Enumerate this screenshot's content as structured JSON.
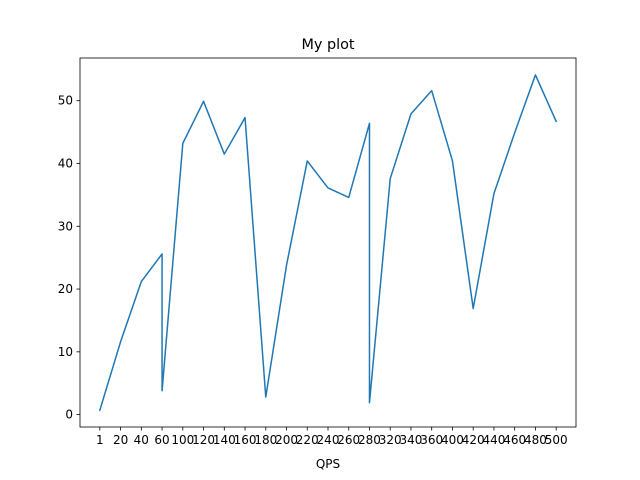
{
  "chart_data": {
    "type": "line",
    "title": "My plot",
    "xlabel": "QPS",
    "ylabel": "",
    "grid": false,
    "legend": "none",
    "color": "#1f77b4",
    "categories": [
      "1",
      "20",
      "40",
      "60",
      "100",
      "120",
      "140",
      "160",
      "180",
      "200",
      "220",
      "240",
      "260",
      "280",
      "320",
      "340",
      "360",
      "400",
      "420",
      "440",
      "460",
      "480",
      "500"
    ],
    "points": [
      {
        "x": "1",
        "y": 0.7
      },
      {
        "x": "20",
        "y": 11.6
      },
      {
        "x": "40",
        "y": 21.2
      },
      {
        "x": "60",
        "y": 25.6
      },
      {
        "x": "60",
        "y": 3.8
      },
      {
        "x": "100",
        "y": 43.2
      },
      {
        "x": "120",
        "y": 49.9
      },
      {
        "x": "140",
        "y": 41.5
      },
      {
        "x": "160",
        "y": 47.3
      },
      {
        "x": "180",
        "y": 2.8
      },
      {
        "x": "200",
        "y": 23.8
      },
      {
        "x": "220",
        "y": 40.4
      },
      {
        "x": "240",
        "y": 36.1
      },
      {
        "x": "260",
        "y": 34.6
      },
      {
        "x": "280",
        "y": 46.4
      },
      {
        "x": "280",
        "y": 1.9
      },
      {
        "x": "320",
        "y": 37.6
      },
      {
        "x": "340",
        "y": 47.9
      },
      {
        "x": "360",
        "y": 51.6
      },
      {
        "x": "400",
        "y": 40.4
      },
      {
        "x": "420",
        "y": 16.9
      },
      {
        "x": "440",
        "y": 35.2
      },
      {
        "x": "460",
        "y": 44.9
      },
      {
        "x": "480",
        "y": 54.1
      },
      {
        "x": "500",
        "y": 46.7
      }
    ],
    "yticks": [
      0,
      10,
      20,
      30,
      40,
      50
    ],
    "ylim": [
      -1.97,
      56.8
    ]
  }
}
